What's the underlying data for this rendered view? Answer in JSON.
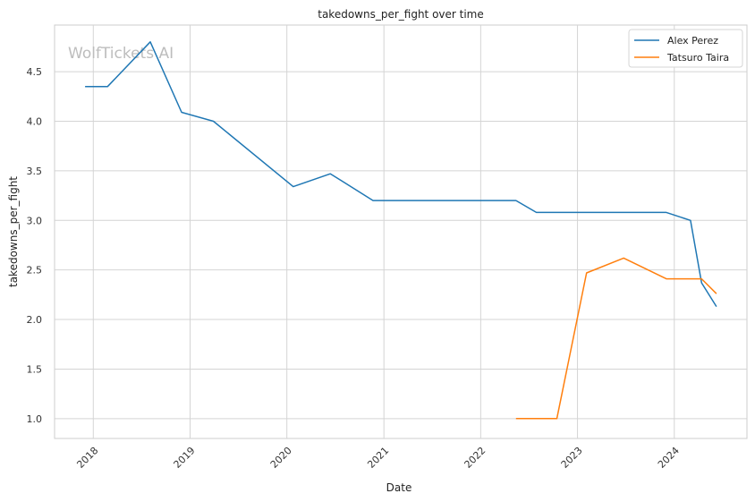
{
  "chart_data": {
    "type": "line",
    "title": "takedowns_per_fight over time",
    "xlabel": "Date",
    "ylabel": "takedowns_per_fight",
    "watermark": "WolfTickets AI",
    "x_ticks": [
      "2018",
      "2019",
      "2020",
      "2021",
      "2022",
      "2023",
      "2024"
    ],
    "y_ticks": [
      "1.0",
      "1.5",
      "2.0",
      "2.5",
      "3.0",
      "3.5",
      "4.0",
      "4.5"
    ],
    "xlim": [
      "2017-08-08",
      "2024-10-01"
    ],
    "ylim": [
      0.8,
      4.97
    ],
    "grid": true,
    "legend_position": "top-right",
    "series": [
      {
        "name": "Alex Perez",
        "color": "#1f77b4",
        "points": [
          {
            "x": "2017-12-01",
            "y": 4.35
          },
          {
            "x": "2018-02-24",
            "y": 4.35
          },
          {
            "x": "2018-08-04",
            "y": 4.8
          },
          {
            "x": "2018-11-30",
            "y": 4.09
          },
          {
            "x": "2019-03-30",
            "y": 4.0
          },
          {
            "x": "2020-01-25",
            "y": 3.34
          },
          {
            "x": "2020-06-13",
            "y": 3.47
          },
          {
            "x": "2020-11-21",
            "y": 3.2
          },
          {
            "x": "2022-05-14",
            "y": 3.2
          },
          {
            "x": "2022-07-30",
            "y": 3.08
          },
          {
            "x": "2023-12-02",
            "y": 3.08
          },
          {
            "x": "2024-03-02",
            "y": 3.0
          },
          {
            "x": "2024-04-13",
            "y": 2.37
          },
          {
            "x": "2024-06-08",
            "y": 2.13
          }
        ]
      },
      {
        "name": "Tatsuro Taira",
        "color": "#ff7f0e",
        "points": [
          {
            "x": "2022-05-14",
            "y": 1.0
          },
          {
            "x": "2022-10-15",
            "y": 1.0
          },
          {
            "x": "2023-02-04",
            "y": 2.47
          },
          {
            "x": "2023-06-24",
            "y": 2.62
          },
          {
            "x": "2023-12-02",
            "y": 2.41
          },
          {
            "x": "2024-04-13",
            "y": 2.41
          },
          {
            "x": "2024-06-08",
            "y": 2.26
          }
        ]
      }
    ]
  }
}
